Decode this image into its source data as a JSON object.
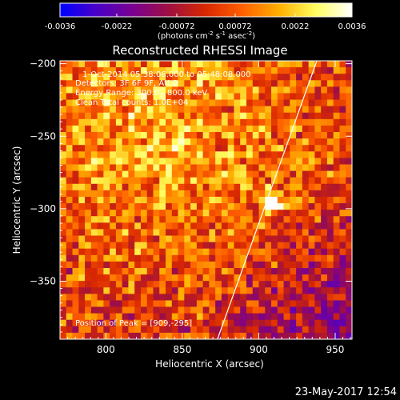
{
  "colorbar": {
    "ticks": [
      "-0.0036",
      "-0.0022",
      "-0.00072",
      "0.00072",
      "0.0022",
      "0.0036"
    ],
    "tick_values": [
      -0.0036,
      -0.0022,
      -0.00072,
      0.00072,
      0.0022,
      0.0036
    ],
    "range": [
      -0.0036,
      0.0036
    ],
    "unit_main": "(photons cm",
    "unit_sup1": "-2",
    "unit_mid": " s",
    "unit_sup2": "-1",
    "unit_end": " asec",
    "unit_sup3": "-2",
    "unit_close": ")",
    "colors": [
      "#0000ff",
      "#4a00c8",
      "#7a0090",
      "#a01040",
      "#d82800",
      "#ff6000",
      "#ffb000",
      "#ffff60",
      "#ffffff"
    ]
  },
  "chart_data": {
    "type": "heatmap",
    "title": "Reconstructed RHESSI Image",
    "xlabel": "Heliocentric X (arcsec)",
    "ylabel": "Heliocentric Y (arcsec)",
    "xlim": [
      770,
      961
    ],
    "ylim": [
      -390,
      -198
    ],
    "x_ticks": [
      800,
      850,
      900,
      950
    ],
    "y_ticks": [
      -200,
      -250,
      -300,
      -350
    ],
    "x_tick_labels": [
      "800",
      "850",
      "900",
      "950"
    ],
    "y_tick_labels": [
      "-200",
      "-250",
      "-300",
      "-350"
    ],
    "limb_line": [
      [
        873,
        -390
      ],
      [
        938,
        -198
      ]
    ],
    "peak": [
      909,
      -295
    ],
    "annotations": {
      "time": "1-Oct-2014 05:38:06.000 to 05:48:08.000",
      "detectors": "Detectors: 3F 6F 9F, Att 0",
      "energy": "Energy Range: 300.0 - 800.0 keV",
      "clean": "Clean    Total counts: 1.0E+04",
      "peak_text": "Position of Peak = [909,-295]"
    }
  },
  "footer": {
    "timestamp": "23-May-2017 12:54"
  }
}
